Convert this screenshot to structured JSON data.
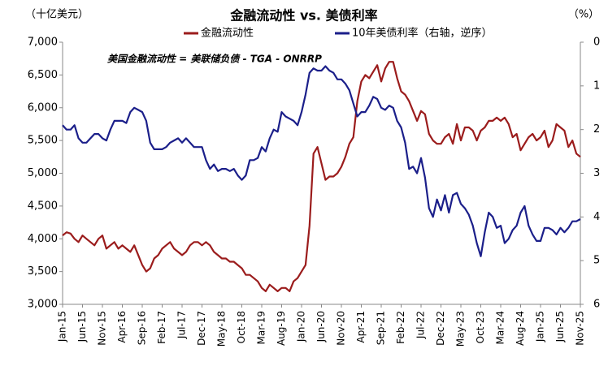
{
  "chart_data": {
    "type": "line",
    "title": "金融流动性 vs. 美债利率",
    "y_label": "（十亿美元）",
    "y2_label": "（%）",
    "annotation": "美国金融流动性 = 美联储负债 - TGA - ONRRP",
    "categories": [
      "Jan-15",
      null,
      null,
      null,
      null,
      "Jun-15",
      null,
      null,
      null,
      null,
      "Nov-15",
      null,
      null,
      null,
      null,
      "Apr-16",
      null,
      null,
      null,
      null,
      "Sep-16",
      null,
      null,
      null,
      null,
      "Feb-17",
      null,
      null,
      null,
      null,
      "Jul-17",
      null,
      null,
      null,
      null,
      "Dec-17",
      null,
      null,
      null,
      null,
      "May-18",
      null,
      null,
      null,
      null,
      "Oct-18",
      null,
      null,
      null,
      null,
      "Mar-19",
      null,
      null,
      null,
      null,
      "Aug-19",
      null,
      null,
      null,
      null,
      "Jan-20",
      null,
      null,
      null,
      null,
      "Jun-20",
      null,
      null,
      null,
      null,
      "Nov-20",
      null,
      null,
      null,
      null,
      "Apr-21",
      null,
      null,
      null,
      null,
      "Sep-21",
      null,
      null,
      null,
      null,
      "Feb-22",
      null,
      null,
      null,
      null,
      "Jul-22",
      null,
      null,
      null,
      null,
      "Dec-22",
      null,
      null,
      null,
      null,
      "May-23",
      null,
      null,
      null,
      null,
      "Oct-23",
      null,
      null,
      null,
      null,
      "Mar-24",
      null,
      null,
      null,
      null,
      "Aug-24",
      null,
      null,
      null,
      null,
      "Jan-25",
      null,
      null,
      null,
      null,
      "Jun-25",
      null,
      null,
      null,
      null,
      "Nov-25"
    ],
    "series": [
      {
        "name": "金融流动性",
        "color": "#9b1c1c",
        "values": [
          4050,
          4100,
          4080,
          4000,
          3950,
          4050,
          4000,
          3950,
          3900,
          4000,
          4050,
          3850,
          3900,
          3950,
          3850,
          3900,
          3850,
          3800,
          3900,
          3750,
          3600,
          3500,
          3550,
          3700,
          3750,
          3850,
          3900,
          3950,
          3850,
          3800,
          3750,
          3800,
          3900,
          3950,
          3950,
          3900,
          3950,
          3900,
          3800,
          3750,
          3700,
          3700,
          3650,
          3650,
          3600,
          3550,
          3450,
          3450,
          3400,
          3350,
          3250,
          3200,
          3300,
          3250,
          3200,
          3250,
          3250,
          3200,
          3350,
          3400,
          3500,
          3600,
          4200,
          5300,
          5400,
          5150,
          4900,
          4950,
          4950,
          5000,
          5100,
          5250,
          5450,
          5550,
          6100,
          6400,
          6500,
          6450,
          6550,
          6650,
          6400,
          6600,
          6700,
          6700,
          6450,
          6250,
          6200,
          6100,
          5950,
          5800,
          5950,
          5900,
          5600,
          5500,
          5450,
          5450,
          5550,
          5600,
          5450,
          5750,
          5500,
          5700,
          5700,
          5650,
          5500,
          5650,
          5700,
          5800,
          5800,
          5850,
          5800,
          5850,
          5750,
          5550,
          5600,
          5350,
          5450,
          5550,
          5600,
          5500,
          5550,
          5650,
          5400,
          5500,
          5750,
          5700,
          5650,
          5400,
          5500,
          5300,
          5250
        ]
      },
      {
        "name": "10年美债利率（右轴，逆序）",
        "color": "#1b1f8a",
        "axis": "y2",
        "values": [
          1.9,
          2.0,
          2.0,
          1.9,
          2.2,
          2.3,
          2.3,
          2.2,
          2.1,
          2.1,
          2.2,
          2.25,
          2.0,
          1.8,
          1.8,
          1.8,
          1.85,
          1.6,
          1.5,
          1.55,
          1.6,
          1.8,
          2.3,
          2.45,
          2.45,
          2.45,
          2.4,
          2.3,
          2.25,
          2.2,
          2.3,
          2.2,
          2.3,
          2.4,
          2.4,
          2.4,
          2.7,
          2.9,
          2.8,
          2.95,
          2.9,
          2.9,
          2.95,
          2.9,
          3.05,
          3.15,
          3.05,
          2.7,
          2.7,
          2.65,
          2.4,
          2.5,
          2.2,
          2.0,
          2.05,
          1.6,
          1.7,
          1.75,
          1.8,
          1.9,
          1.6,
          1.2,
          0.7,
          0.6,
          0.65,
          0.65,
          0.55,
          0.65,
          0.7,
          0.85,
          0.85,
          0.95,
          1.1,
          1.4,
          1.7,
          1.6,
          1.6,
          1.45,
          1.25,
          1.3,
          1.5,
          1.55,
          1.45,
          1.5,
          1.8,
          1.95,
          2.3,
          2.9,
          2.85,
          3.0,
          2.65,
          3.1,
          3.8,
          4.0,
          3.6,
          3.85,
          3.5,
          3.9,
          3.5,
          3.45,
          3.7,
          3.8,
          3.95,
          4.2,
          4.6,
          4.9,
          4.35,
          3.9,
          4.0,
          4.25,
          4.2,
          4.6,
          4.5,
          4.3,
          4.2,
          3.9,
          3.75,
          4.2,
          4.4,
          4.55,
          4.55,
          4.25,
          4.25,
          4.3,
          4.4,
          4.25,
          4.35,
          4.25,
          4.1,
          4.1,
          4.05
        ]
      }
    ],
    "ylim": [
      3000,
      7000
    ],
    "yticks": [
      {
        "value": 3000,
        "label": "3,000"
      },
      {
        "value": 3500,
        "label": "3,500"
      },
      {
        "value": 4000,
        "label": "4,000"
      },
      {
        "value": 4500,
        "label": "4,500"
      },
      {
        "value": 5000,
        "label": "5,000"
      },
      {
        "value": 5500,
        "label": "5,500"
      },
      {
        "value": 6000,
        "label": "6,000"
      },
      {
        "value": 6500,
        "label": "6,500"
      },
      {
        "value": 7000,
        "label": "7,000"
      }
    ],
    "y2lim": [
      0,
      6
    ],
    "y2_reverse": true,
    "y2ticks": [
      0,
      1,
      2,
      3,
      4,
      5,
      6
    ],
    "grid": false,
    "legend": "top"
  }
}
